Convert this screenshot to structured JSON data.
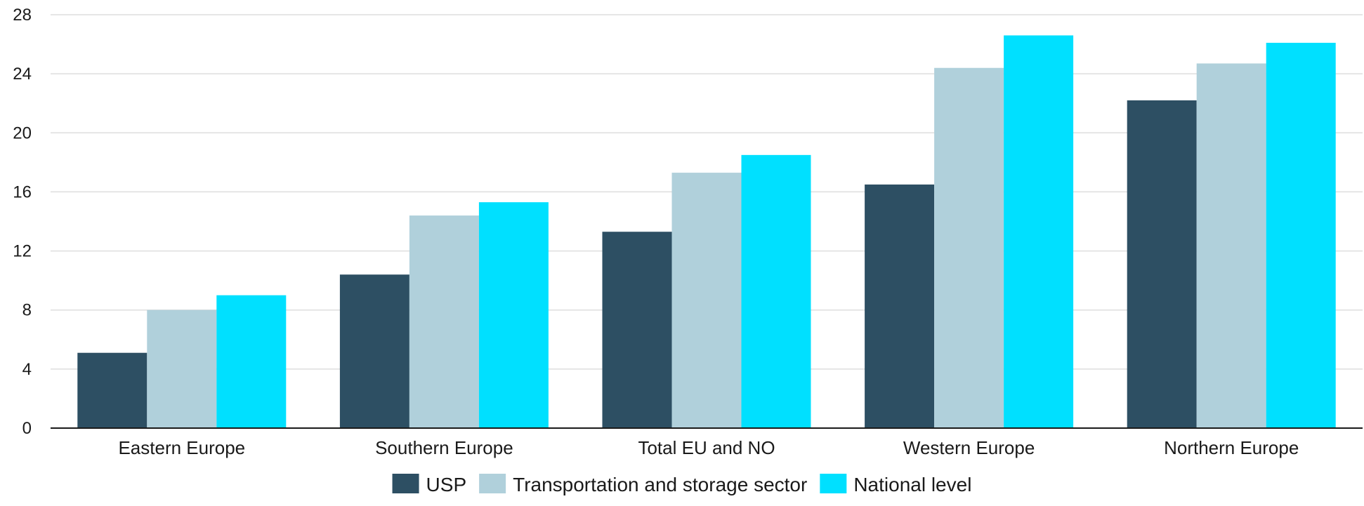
{
  "chart_data": {
    "type": "bar",
    "categories": [
      "Eastern Europe",
      "Southern Europe",
      "Total EU and NO",
      "Western Europe",
      "Northern Europe"
    ],
    "series": [
      {
        "name": "USP",
        "color": "#2d4f63",
        "values": [
          5.1,
          10.4,
          13.3,
          16.5,
          22.2
        ]
      },
      {
        "name": "Transportation and storage sector",
        "color": "#b0d0db",
        "values": [
          8.0,
          14.4,
          17.3,
          24.4,
          24.7
        ]
      },
      {
        "name": "National level",
        "color": "#00e0ff",
        "values": [
          9.0,
          15.3,
          18.5,
          26.6,
          26.1
        ]
      }
    ],
    "ylim": [
      0,
      28
    ],
    "yticks": [
      "0",
      "4",
      "8",
      "12",
      "16",
      "20",
      "24",
      "28"
    ],
    "grid": true,
    "legend": "bottom-center"
  }
}
